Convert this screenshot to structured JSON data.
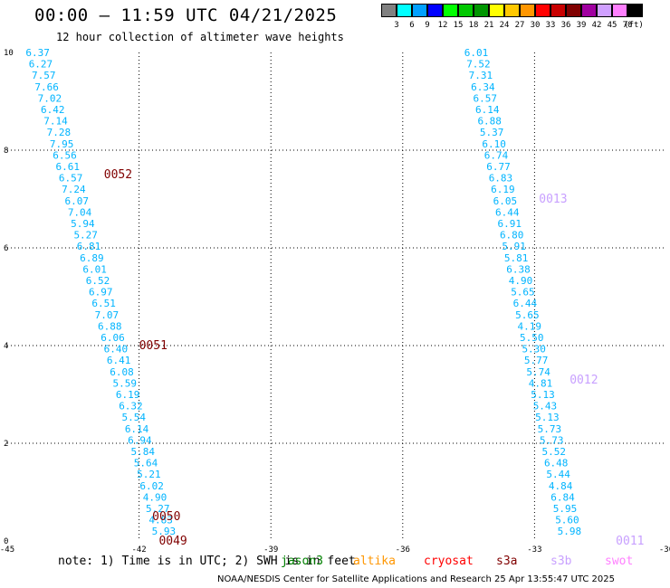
{
  "title": "00:00 – 11:59 UTC 04/21/2025",
  "subtitle": "12 hour collection of altimeter wave heights",
  "legend": {
    "unit": "(ft)",
    "items": [
      {
        "label": "3",
        "color": "#808080"
      },
      {
        "label": "6",
        "color": "#00ffff"
      },
      {
        "label": "9",
        "color": "#00a0ff"
      },
      {
        "label": "12",
        "color": "#0000ff"
      },
      {
        "label": "15",
        "color": "#00ff00"
      },
      {
        "label": "18",
        "color": "#00c800"
      },
      {
        "label": "21",
        "color": "#009600"
      },
      {
        "label": "24",
        "color": "#ffff00"
      },
      {
        "label": "27",
        "color": "#ffc800"
      },
      {
        "label": "30",
        "color": "#ff9600"
      },
      {
        "label": "33",
        "color": "#ff0000"
      },
      {
        "label": "36",
        "color": "#c80000"
      },
      {
        "label": "39",
        "color": "#800000"
      },
      {
        "label": "42",
        "color": "#a000a0"
      },
      {
        "label": "45",
        "color": "#d0a0ff"
      },
      {
        "label": "70",
        "color": "#ff80ff"
      },
      {
        "label": "",
        "color": "#000000"
      }
    ]
  },
  "note": "note: 1) Time is in UTC; 2) SWH is in feet",
  "satellites": [
    {
      "name": "jason3",
      "color": "#008000"
    },
    {
      "name": "altika",
      "color": "#ff9600"
    },
    {
      "name": "cryosat",
      "color": "#ff0000"
    },
    {
      "name": "s3a",
      "color": "#800000"
    },
    {
      "name": "s3b",
      "color": "#c8a0ff"
    },
    {
      "name": "swot",
      "color": "#ff80ff"
    }
  ],
  "footer": "NOAA/NESDIS Center for Satellite Applications and Research   25 Apr 13:55:47 UTC 2025",
  "chart_data": {
    "type": "scatter",
    "xlim": [
      -45,
      -30
    ],
    "ylim": [
      0,
      10
    ],
    "x_ticks": [
      "-45",
      "-42",
      "-39",
      "-36",
      "-33",
      "-30"
    ],
    "y_ticks": [
      "0",
      "2",
      "4",
      "6",
      "8",
      "10"
    ],
    "grid": true,
    "value_color": "#00b4ff",
    "tracks": [
      {
        "start_lon": -44.58,
        "end_lon": -41.71,
        "start_lat": 10.0,
        "end_lat": 0.2,
        "values": [
          "6.37",
          "6.27",
          "7.57",
          "7.66",
          "7.02",
          "6.42",
          "7.14",
          "7.28",
          "7.95",
          "6.56",
          "6.61",
          "6.57",
          "7.24",
          "6.07",
          "7.04",
          "5.94",
          "5.27",
          "6.81",
          "6.89",
          "6.01",
          "6.52",
          "6.97",
          "6.51",
          "7.07",
          "6.88",
          "6.06",
          "6.40",
          "6.41",
          "6.08",
          "5.59",
          "6.19",
          "6.32",
          "5.54",
          "6.14",
          "6.94",
          "5.84",
          "5.64",
          "5.21",
          "6.02",
          "4.90",
          "5.27",
          "4.83",
          "5.93"
        ]
      },
      {
        "start_lon": -34.6,
        "end_lon": -32.48,
        "start_lat": 10.0,
        "end_lat": 0.2,
        "values": [
          "6.01",
          "7.52",
          "7.31",
          "6.34",
          "6.57",
          "6.14",
          "6.88",
          "5.37",
          "6.10",
          "6.74",
          "6.77",
          "6.83",
          "6.19",
          "6.05",
          "6.44",
          "6.91",
          "6.80",
          "5.91",
          "5.81",
          "6.38",
          "4.90",
          "5.65",
          "6.44",
          "5.65",
          "4.19",
          "5.50",
          "5.30",
          "5.77",
          "5.74",
          "4.81",
          "5.13",
          "5.43",
          "5.13",
          "5.73",
          "5.73",
          "5.52",
          "6.48",
          "5.44",
          "4.84",
          "6.84",
          "5.95",
          "5.60",
          "5.98"
        ]
      }
    ],
    "pass_labels": [
      {
        "text": "0052",
        "lon": -42.8,
        "lat": 7.5,
        "color": "#800000"
      },
      {
        "text": "0051",
        "lon": -42.0,
        "lat": 4.0,
        "color": "#800000"
      },
      {
        "text": "0050",
        "lon": -41.7,
        "lat": 0.5,
        "color": "#800000"
      },
      {
        "text": "0049",
        "lon": -41.55,
        "lat": 0.0,
        "color": "#800000"
      },
      {
        "text": "0013",
        "lon": -32.9,
        "lat": 7.0,
        "color": "#c8a0ff"
      },
      {
        "text": "0012",
        "lon": -32.2,
        "lat": 3.3,
        "color": "#c8a0ff"
      },
      {
        "text": "0011",
        "lon": -31.15,
        "lat": 0.0,
        "color": "#c8a0ff"
      }
    ]
  }
}
